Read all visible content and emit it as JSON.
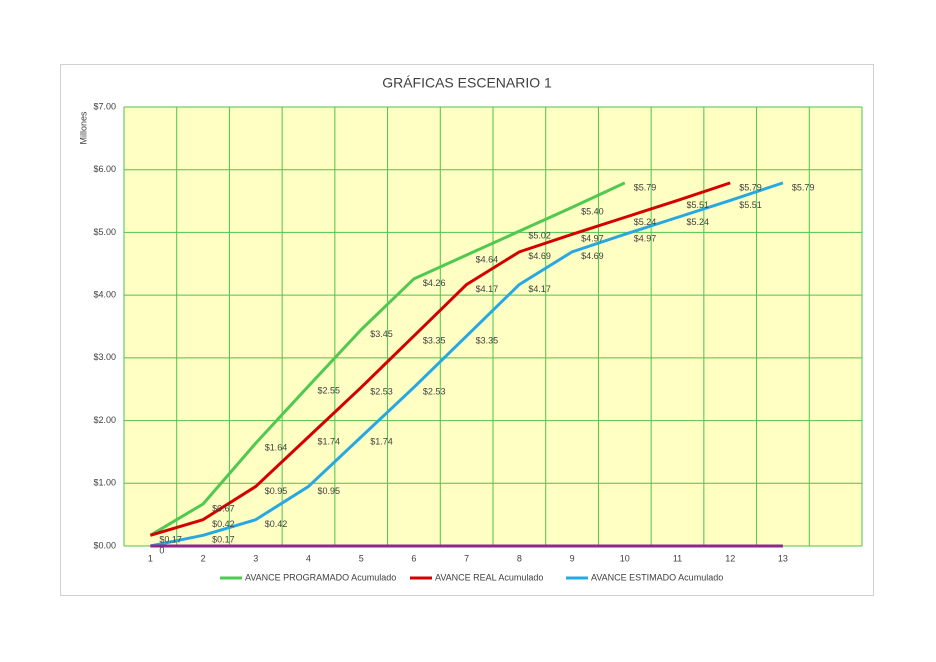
{
  "chart_data": {
    "type": "line",
    "title": "GRÁFICAS ESCENARIO 1",
    "y_label": "Millones",
    "categories": [
      "1",
      "2",
      "3",
      "4",
      "5",
      "6",
      "7",
      "8",
      "9",
      "10",
      "11",
      "12",
      "13",
      null
    ],
    "ylim": [
      0,
      7
    ],
    "yticks": [
      {
        "value": 0,
        "label": "$0.00"
      },
      {
        "value": 1,
        "label": "$1.00"
      },
      {
        "value": 2,
        "label": "$2.00"
      },
      {
        "value": 3,
        "label": "$3.00"
      },
      {
        "value": 4,
        "label": "$4.00"
      },
      {
        "value": 5,
        "label": "$5.00"
      },
      {
        "value": 6,
        "label": "$6.00"
      },
      {
        "value": 7,
        "label": "$7.00"
      }
    ],
    "grid": true,
    "legend": "bottom",
    "plot_color": "#ffffc4",
    "grid_color": "#4ec24e",
    "series": [
      {
        "name": "AVANCE PROGRAMADO Acumulado",
        "color": "#4fc94f",
        "values": [
          0.17,
          0.67,
          1.64,
          2.55,
          3.45,
          4.26,
          4.64,
          5.02,
          5.4,
          5.79,
          null,
          null,
          null,
          null
        ],
        "value_labels": [
          null,
          "$0.67",
          "$1.64",
          "$2.55",
          "$3.45",
          "$4.26",
          "$4.64",
          "$5.02",
          "$5.40",
          "$5.79",
          null,
          null,
          null,
          null
        ]
      },
      {
        "name": "AVANCE REAL Acumulado",
        "color": "#d40000",
        "values": [
          0.17,
          0.42,
          0.95,
          1.74,
          2.53,
          3.35,
          4.17,
          4.69,
          4.97,
          5.24,
          5.51,
          5.79,
          null,
          null
        ],
        "value_labels": [
          "$0.17",
          "$0.42",
          "$0.95",
          "$1.74",
          "$2.53",
          "$3.35",
          "$4.17",
          "$4.69",
          "$4.97",
          "$5.24",
          "$5.51",
          "$5.79",
          null,
          null
        ]
      },
      {
        "name": "AVANCE ESTIMADO Acumulado",
        "color": "#27a8e0",
        "values": [
          0,
          0.17,
          0.42,
          0.95,
          1.74,
          2.53,
          3.35,
          4.17,
          4.69,
          4.97,
          5.24,
          5.51,
          5.79,
          null
        ],
        "value_labels": [
          "0",
          "$0.17",
          "$0.42",
          "$0.95",
          "$1.74",
          "$2.53",
          "$3.35",
          "$4.17",
          "$4.69",
          "$4.97",
          "$5.24",
          "$5.51",
          "$5.79",
          null
        ]
      },
      {
        "color": "#8b2a8b",
        "values": [
          0,
          0,
          0,
          0,
          0,
          0,
          0,
          0,
          0,
          0,
          0,
          0,
          0,
          null
        ]
      }
    ]
  }
}
